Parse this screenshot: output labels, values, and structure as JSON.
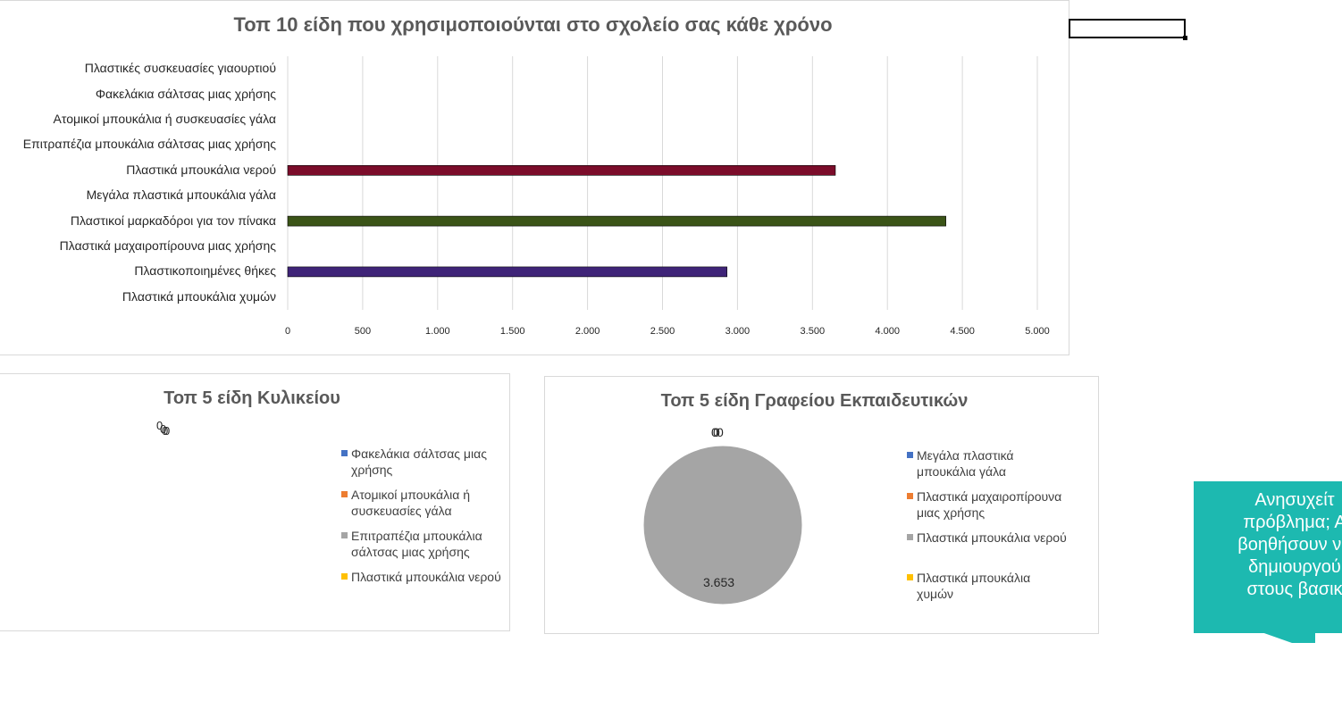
{
  "chart_data": [
    {
      "type": "bar",
      "orientation": "horizontal",
      "title": "Τοπ 10 είδη που χρησιμοποιούνται στο σχολείο σας κάθε χρόνο",
      "categories": [
        "Πλαστικές συσκευασίες γιαουρτιού",
        "Φακελάκια σάλτσας μιας χρήσης",
        "Ατομικοί μπουκάλια ή συσκευασίες γάλα",
        "Επιτραπέζια  μπουκάλια σάλτσας μιας χρήσης",
        "Πλαστικά μπουκάλια νερού",
        "Μεγάλα πλαστικά μπουκάλια γάλα",
        "Πλαστικοί μαρκαδόροι για τον πίνακα",
        "Πλαστικά μαχαιροπίρουνα  μιας χρήσης",
        "Πλαστικοποιημένες θήκες",
        "Πλαστικά μπουκάλια χυμών"
      ],
      "values": [
        0,
        0,
        0,
        0,
        3653,
        0,
        4390,
        0,
        2930,
        0
      ],
      "bar_colors": [
        "#4472c4",
        "#ed7d31",
        "#a5a5a5",
        "#ffc000",
        "#7b0c2a",
        "#5b9bd5",
        "#3b5417",
        "#70ad47",
        "#3f2478",
        "#264478"
      ],
      "xlim": [
        0,
        5000
      ],
      "xticks": [
        "0",
        "500",
        "1.000",
        "1.500",
        "2.000",
        "2.500",
        "3.000",
        "3.500",
        "4.000",
        "4.500",
        "5.000"
      ],
      "grid": true,
      "legend": "none"
    },
    {
      "type": "pie",
      "title": "Τοπ 5 είδη Κυλικείου",
      "labels": [
        "Φακελάκια σάλτσας μιας χρήσης",
        "Ατομικοί μπουκάλια ή συσκευασίες γάλα",
        "Επιτραπέζια  μπουκάλια σάλτσας μιας χρήσης",
        "Πλαστικά μπουκάλια νερού"
      ],
      "values": [
        0,
        0,
        0,
        0
      ],
      "data_labels": [
        "0",
        "0",
        "0",
        "0"
      ],
      "colors": [
        "#4472c4",
        "#ed7d31",
        "#a5a5a5",
        "#ffc000"
      ],
      "legend": "right"
    },
    {
      "type": "pie",
      "title": "Τοπ 5 είδη Γραφείου Εκπαιδευτικών",
      "labels": [
        "Μεγάλα πλαστικά μπουκάλια γάλα",
        "Πλαστικά μαχαιροπίρουνα μιας χρήσης",
        "Πλαστικά μπουκάλια νερού",
        "Πλαστικά μπουκάλια χυμών"
      ],
      "values": [
        0,
        0,
        3653,
        0
      ],
      "data_labels": [
        "0",
        "0",
        "3.653",
        "0"
      ],
      "colors": [
        "#4472c4",
        "#ed7d31",
        "#a5a5a5",
        "#ffc000"
      ],
      "legend": "right"
    }
  ],
  "callout": {
    "lines": [
      "Ανησυχείτ",
      "πρόβλημα; Α",
      "βοηθήσουν να",
      "δημιουργού",
      "στους βασικ"
    ],
    "color": "#1db9b0"
  }
}
